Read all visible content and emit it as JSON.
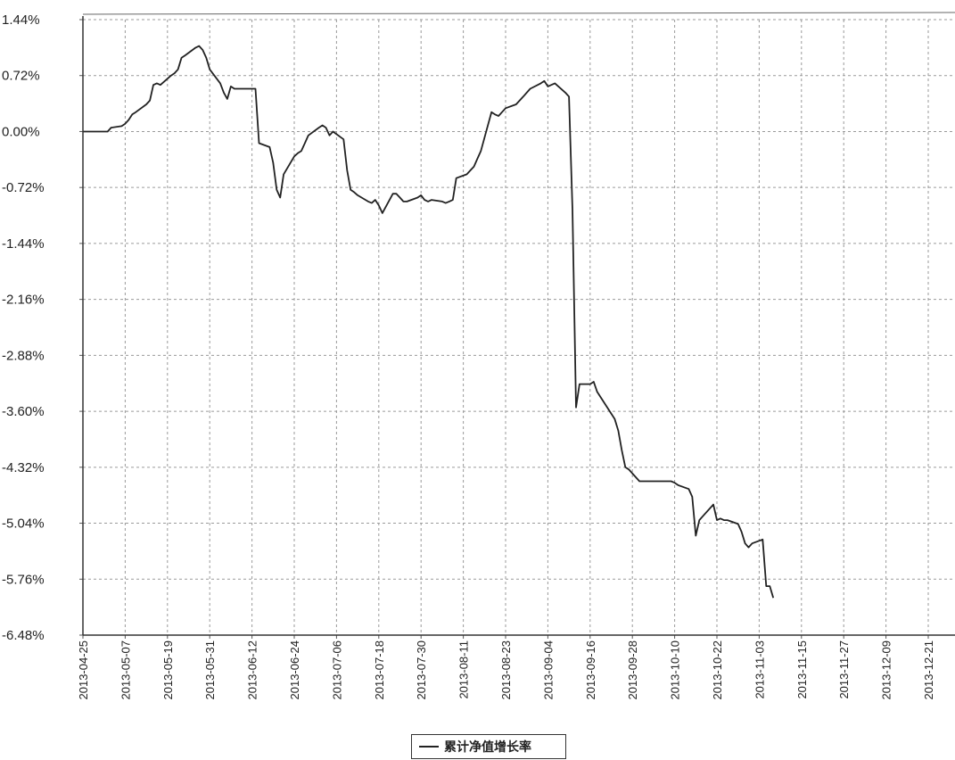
{
  "chart_data": {
    "type": "line",
    "title": "",
    "xlabel": "",
    "ylabel": "",
    "ylim": [
      -6.48,
      1.44
    ],
    "y_ticks": [
      "1.44%",
      "0.72%",
      "0.00%",
      "-0.72%",
      "-1.44%",
      "-2.16%",
      "-2.88%",
      "-3.60%",
      "-4.32%",
      "-5.04%",
      "-5.76%",
      "-6.48%"
    ],
    "y_tick_values": [
      1.44,
      0.72,
      0.0,
      -0.72,
      -1.44,
      -2.16,
      -2.88,
      -3.6,
      -4.32,
      -5.04,
      -5.76,
      -6.48
    ],
    "x_range": [
      "2013-04-25",
      "2013-12-30"
    ],
    "x_ticks": [
      "2013-04-25",
      "2013-05-07",
      "2013-05-19",
      "2013-05-31",
      "2013-06-12",
      "2013-06-24",
      "2013-07-06",
      "2013-07-18",
      "2013-07-30",
      "2013-08-11",
      "2013-08-23",
      "2013-09-04",
      "2013-09-16",
      "2013-09-28",
      "2013-10-10",
      "2013-10-22",
      "2013-11-03",
      "2013-11-15",
      "2013-11-27",
      "2013-12-09",
      "2013-12-21"
    ],
    "grid": true,
    "legend": "bottom-center",
    "series": [
      {
        "name": "累计净值增长率",
        "color": "#222222",
        "points": [
          [
            "2013-04-25",
            0.0
          ],
          [
            "2013-04-26",
            0.0
          ],
          [
            "2013-04-29",
            0.0
          ],
          [
            "2013-05-02",
            0.0
          ],
          [
            "2013-05-03",
            0.05
          ],
          [
            "2013-05-06",
            0.07
          ],
          [
            "2013-05-07",
            0.1
          ],
          [
            "2013-05-08",
            0.15
          ],
          [
            "2013-05-09",
            0.22
          ],
          [
            "2013-05-10",
            0.25
          ],
          [
            "2013-05-13",
            0.35
          ],
          [
            "2013-05-14",
            0.4
          ],
          [
            "2013-05-15",
            0.6
          ],
          [
            "2013-05-16",
            0.62
          ],
          [
            "2013-05-17",
            0.6
          ],
          [
            "2013-05-20",
            0.72
          ],
          [
            "2013-05-21",
            0.75
          ],
          [
            "2013-05-22",
            0.8
          ],
          [
            "2013-05-23",
            0.95
          ],
          [
            "2013-05-24",
            0.98
          ],
          [
            "2013-05-27",
            1.08
          ],
          [
            "2013-05-28",
            1.1
          ],
          [
            "2013-05-29",
            1.05
          ],
          [
            "2013-05-30",
            0.95
          ],
          [
            "2013-05-31",
            0.8
          ],
          [
            "2013-06-03",
            0.62
          ],
          [
            "2013-06-04",
            0.5
          ],
          [
            "2013-06-05",
            0.42
          ],
          [
            "2013-06-06",
            0.58
          ],
          [
            "2013-06-07",
            0.55
          ],
          [
            "2013-06-13",
            0.55
          ],
          [
            "2013-06-14",
            -0.15
          ],
          [
            "2013-06-17",
            -0.2
          ],
          [
            "2013-06-18",
            -0.4
          ],
          [
            "2013-06-19",
            -0.75
          ],
          [
            "2013-06-20",
            -0.85
          ],
          [
            "2013-06-21",
            -0.55
          ],
          [
            "2013-06-24",
            -0.32
          ],
          [
            "2013-06-25",
            -0.28
          ],
          [
            "2013-06-26",
            -0.25
          ],
          [
            "2013-06-27",
            -0.15
          ],
          [
            "2013-06-28",
            -0.05
          ],
          [
            "2013-07-01",
            0.05
          ],
          [
            "2013-07-02",
            0.08
          ],
          [
            "2013-07-03",
            0.05
          ],
          [
            "2013-07-04",
            -0.05
          ],
          [
            "2013-07-05",
            0.0
          ],
          [
            "2013-07-08",
            -0.1
          ],
          [
            "2013-07-09",
            -0.5
          ],
          [
            "2013-07-10",
            -0.75
          ],
          [
            "2013-07-11",
            -0.78
          ],
          [
            "2013-07-12",
            -0.82
          ],
          [
            "2013-07-15",
            -0.9
          ],
          [
            "2013-07-16",
            -0.92
          ],
          [
            "2013-07-17",
            -0.88
          ],
          [
            "2013-07-18",
            -0.95
          ],
          [
            "2013-07-19",
            -1.05
          ],
          [
            "2013-07-22",
            -0.8
          ],
          [
            "2013-07-23",
            -0.8
          ],
          [
            "2013-07-24",
            -0.85
          ],
          [
            "2013-07-25",
            -0.9
          ],
          [
            "2013-07-26",
            -0.9
          ],
          [
            "2013-07-29",
            -0.85
          ],
          [
            "2013-07-30",
            -0.82
          ],
          [
            "2013-07-31",
            -0.88
          ],
          [
            "2013-08-01",
            -0.9
          ],
          [
            "2013-08-02",
            -0.88
          ],
          [
            "2013-08-05",
            -0.9
          ],
          [
            "2013-08-06",
            -0.92
          ],
          [
            "2013-08-07",
            -0.9
          ],
          [
            "2013-08-08",
            -0.88
          ],
          [
            "2013-08-09",
            -0.6
          ],
          [
            "2013-08-12",
            -0.55
          ],
          [
            "2013-08-13",
            -0.5
          ],
          [
            "2013-08-14",
            -0.45
          ],
          [
            "2013-08-15",
            -0.35
          ],
          [
            "2013-08-16",
            -0.25
          ],
          [
            "2013-08-19",
            0.25
          ],
          [
            "2013-08-20",
            0.22
          ],
          [
            "2013-08-21",
            0.2
          ],
          [
            "2013-08-22",
            0.25
          ],
          [
            "2013-08-23",
            0.3
          ],
          [
            "2013-08-26",
            0.35
          ],
          [
            "2013-08-27",
            0.4
          ],
          [
            "2013-08-28",
            0.45
          ],
          [
            "2013-08-29",
            0.5
          ],
          [
            "2013-08-30",
            0.55
          ],
          [
            "2013-09-02",
            0.62
          ],
          [
            "2013-09-03",
            0.65
          ],
          [
            "2013-09-04",
            0.58
          ],
          [
            "2013-09-05",
            0.6
          ],
          [
            "2013-09-06",
            0.62
          ],
          [
            "2013-09-09",
            0.5
          ],
          [
            "2013-09-10",
            0.45
          ],
          [
            "2013-09-11",
            -1.0
          ],
          [
            "2013-09-12",
            -3.55
          ],
          [
            "2013-09-13",
            -3.25
          ],
          [
            "2013-09-16",
            -3.25
          ],
          [
            "2013-09-17",
            -3.22
          ],
          [
            "2013-09-18",
            -3.35
          ],
          [
            "2013-09-23",
            -3.7
          ],
          [
            "2013-09-24",
            -3.85
          ],
          [
            "2013-09-25",
            -4.1
          ],
          [
            "2013-09-26",
            -4.32
          ],
          [
            "2013-09-27",
            -4.35
          ],
          [
            "2013-09-30",
            -4.5
          ],
          [
            "2013-10-08",
            -4.5
          ],
          [
            "2013-10-09",
            -4.5
          ],
          [
            "2013-10-10",
            -4.52
          ],
          [
            "2013-10-11",
            -4.55
          ],
          [
            "2013-10-14",
            -4.6
          ],
          [
            "2013-10-15",
            -4.7
          ],
          [
            "2013-10-16",
            -5.2
          ],
          [
            "2013-10-17",
            -5.0
          ],
          [
            "2013-10-18",
            -4.95
          ],
          [
            "2013-10-21",
            -4.8
          ],
          [
            "2013-10-22",
            -5.0
          ],
          [
            "2013-10-23",
            -4.98
          ],
          [
            "2013-10-24",
            -5.0
          ],
          [
            "2013-10-25",
            -5.0
          ],
          [
            "2013-10-28",
            -5.05
          ],
          [
            "2013-10-29",
            -5.15
          ],
          [
            "2013-10-30",
            -5.3
          ],
          [
            "2013-10-31",
            -5.35
          ],
          [
            "2013-11-01",
            -5.3
          ],
          [
            "2013-11-04",
            -5.25
          ],
          [
            "2013-11-05",
            -5.85
          ],
          [
            "2013-11-06",
            -5.85
          ],
          [
            "2013-11-07",
            -6.0
          ]
        ]
      }
    ]
  }
}
